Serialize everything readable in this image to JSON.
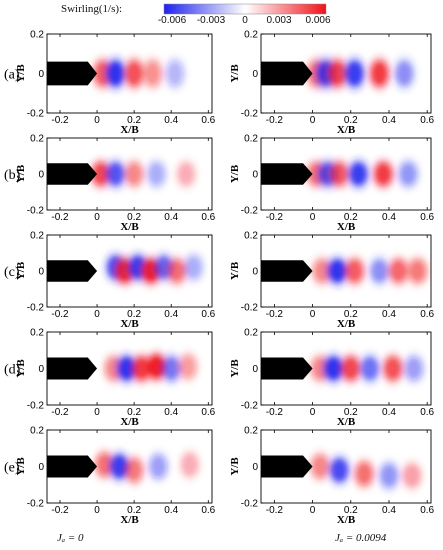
{
  "colorbar": {
    "label": "Swirling(1/s):",
    "ticks": [
      "-0.006",
      "-0.003",
      "0",
      "0.003",
      "0.006"
    ],
    "colors": {
      "negative": "#1e22ee",
      "zero": "#ffffff",
      "positive": "#f0121a"
    }
  },
  "columns": {
    "left_label": "Jₐ = 0",
    "right_label": "Jₐ = 0.0094"
  },
  "chart_data": [
    {
      "type": "heatmap",
      "row": "(a)",
      "column": "J = 0",
      "xlabel": "X/B",
      "ylabel": "Y/B",
      "xlim": [
        -0.27,
        0.62
      ],
      "ylim": [
        -0.2,
        0.2
      ],
      "xticks": [
        "-0.2",
        "0",
        "0.2",
        "0.4",
        "0.6"
      ],
      "yticks": [
        "-0.2",
        "0",
        "0.2"
      ],
      "structures": [
        {
          "x": 0.03,
          "y": 0.0,
          "sign": 1,
          "strength": 0.7
        },
        {
          "x": 0.1,
          "y": 0.0,
          "sign": -1,
          "strength": 1.0
        },
        {
          "x": 0.2,
          "y": 0.0,
          "sign": 1,
          "strength": 0.75
        },
        {
          "x": 0.3,
          "y": 0.0,
          "sign": 1,
          "strength": 0.45
        },
        {
          "x": 0.42,
          "y": 0.0,
          "sign": -1,
          "strength": 0.3
        }
      ]
    },
    {
      "type": "heatmap",
      "row": "(a)",
      "column": "J = 0.0094",
      "xlabel": "X/B",
      "ylabel": "Y/B",
      "xlim": [
        -0.27,
        0.62
      ],
      "ylim": [
        -0.2,
        0.2
      ],
      "xticks": [
        "-0.2",
        "0",
        "0.2",
        "0.4",
        "0.6"
      ],
      "yticks": [
        "-0.2",
        "0",
        "0.2"
      ],
      "structures": [
        {
          "x": 0.02,
          "y": 0.0,
          "sign": 1,
          "strength": 0.6
        },
        {
          "x": 0.07,
          "y": 0.0,
          "sign": -1,
          "strength": 0.9
        },
        {
          "x": 0.13,
          "y": 0.0,
          "sign": 1,
          "strength": 0.8
        },
        {
          "x": 0.22,
          "y": 0.0,
          "sign": -1,
          "strength": 0.95
        },
        {
          "x": 0.35,
          "y": 0.0,
          "sign": 1,
          "strength": 0.85
        },
        {
          "x": 0.48,
          "y": 0.0,
          "sign": -1,
          "strength": 0.5
        }
      ]
    },
    {
      "type": "heatmap",
      "row": "(b)",
      "column": "J = 0",
      "xlabel": "X/B",
      "ylabel": "Y/B",
      "xlim": [
        -0.27,
        0.62
      ],
      "ylim": [
        -0.2,
        0.2
      ],
      "xticks": [
        "-0.2",
        "0",
        "0.2",
        "0.4",
        "0.6"
      ],
      "yticks": [
        "-0.2",
        "0",
        "0.2"
      ],
      "structures": [
        {
          "x": 0.02,
          "y": 0.0,
          "sign": 1,
          "strength": 0.8
        },
        {
          "x": 0.1,
          "y": 0.0,
          "sign": -1,
          "strength": 0.8
        },
        {
          "x": 0.2,
          "y": 0.0,
          "sign": 1,
          "strength": 0.5
        },
        {
          "x": 0.32,
          "y": 0.0,
          "sign": -1,
          "strength": 0.35
        },
        {
          "x": 0.48,
          "y": 0.0,
          "sign": 1,
          "strength": 0.3
        }
      ]
    },
    {
      "type": "heatmap",
      "row": "(b)",
      "column": "J = 0.0094",
      "xlabel": "X/B",
      "ylabel": "Y/B",
      "xlim": [
        -0.27,
        0.62
      ],
      "ylim": [
        -0.2,
        0.2
      ],
      "xticks": [
        "-0.2",
        "0",
        "0.2",
        "0.4",
        "0.6"
      ],
      "yticks": [
        "-0.2",
        "0",
        "0.2"
      ],
      "structures": [
        {
          "x": 0.02,
          "y": 0.0,
          "sign": 1,
          "strength": 0.6
        },
        {
          "x": 0.08,
          "y": 0.0,
          "sign": -1,
          "strength": 0.8
        },
        {
          "x": 0.14,
          "y": 0.0,
          "sign": 1,
          "strength": 0.7
        },
        {
          "x": 0.24,
          "y": 0.0,
          "sign": -1,
          "strength": 0.95
        },
        {
          "x": 0.37,
          "y": 0.0,
          "sign": 1,
          "strength": 0.85
        },
        {
          "x": 0.5,
          "y": 0.0,
          "sign": -1,
          "strength": 0.45
        }
      ]
    },
    {
      "type": "heatmap",
      "row": "(c)",
      "column": "J = 0",
      "xlabel": "X/B",
      "ylabel": "Y/B",
      "xlim": [
        -0.27,
        0.62
      ],
      "ylim": [
        -0.2,
        0.2
      ],
      "xticks": [
        "-0.2",
        "0",
        "0.2",
        "0.4",
        "0.6"
      ],
      "yticks": [
        "-0.2",
        "0",
        "0.2"
      ],
      "structures": [
        {
          "x": 0.1,
          "y": 0.02,
          "sign": -1,
          "strength": 0.85
        },
        {
          "x": 0.15,
          "y": 0.0,
          "sign": 1,
          "strength": 0.95
        },
        {
          "x": 0.22,
          "y": 0.02,
          "sign": -1,
          "strength": 0.95
        },
        {
          "x": 0.29,
          "y": 0.0,
          "sign": 1,
          "strength": 1.0
        },
        {
          "x": 0.36,
          "y": 0.02,
          "sign": -1,
          "strength": 0.7
        },
        {
          "x": 0.43,
          "y": 0.0,
          "sign": 1,
          "strength": 0.6
        },
        {
          "x": 0.52,
          "y": 0.02,
          "sign": -1,
          "strength": 0.35
        }
      ]
    },
    {
      "type": "heatmap",
      "row": "(c)",
      "column": "J = 0.0094",
      "xlabel": "X/B",
      "ylabel": "Y/B",
      "xlim": [
        -0.27,
        0.62
      ],
      "ylim": [
        -0.2,
        0.2
      ],
      "xticks": [
        "-0.2",
        "0",
        "0.2",
        "0.4",
        "0.6"
      ],
      "yticks": [
        "-0.2",
        "0",
        "0.2"
      ],
      "structures": [
        {
          "x": 0.05,
          "y": 0.0,
          "sign": 1,
          "strength": 0.5
        },
        {
          "x": 0.13,
          "y": 0.0,
          "sign": -1,
          "strength": 1.0
        },
        {
          "x": 0.22,
          "y": 0.0,
          "sign": 1,
          "strength": 0.7
        },
        {
          "x": 0.35,
          "y": 0.0,
          "sign": -1,
          "strength": 0.5
        },
        {
          "x": 0.45,
          "y": 0.0,
          "sign": 1,
          "strength": 0.65
        },
        {
          "x": 0.55,
          "y": 0.0,
          "sign": 1,
          "strength": 0.55
        }
      ]
    },
    {
      "type": "heatmap",
      "row": "(d)",
      "column": "J = 0",
      "xlabel": "X/B",
      "ylabel": "Y/B",
      "xlim": [
        -0.27,
        0.62
      ],
      "ylim": [
        -0.2,
        0.2
      ],
      "xticks": [
        "-0.2",
        "0",
        "0.2",
        "0.4",
        "0.6"
      ],
      "yticks": [
        "-0.2",
        "0",
        "0.2"
      ],
      "structures": [
        {
          "x": 0.09,
          "y": 0.0,
          "sign": 1,
          "strength": 0.5
        },
        {
          "x": 0.16,
          "y": 0.0,
          "sign": -1,
          "strength": 1.0
        },
        {
          "x": 0.24,
          "y": 0.0,
          "sign": 1,
          "strength": 0.85
        },
        {
          "x": 0.32,
          "y": 0.01,
          "sign": 1,
          "strength": 1.0
        },
        {
          "x": 0.4,
          "y": 0.0,
          "sign": -1,
          "strength": 0.6
        },
        {
          "x": 0.49,
          "y": 0.01,
          "sign": 1,
          "strength": 0.4
        }
      ]
    },
    {
      "type": "heatmap",
      "row": "(d)",
      "column": "J = 0.0094",
      "xlabel": "X/B",
      "ylabel": "Y/B",
      "xlim": [
        -0.27,
        0.62
      ],
      "ylim": [
        -0.2,
        0.2
      ],
      "xticks": [
        "-0.2",
        "0",
        "0.2",
        "0.4",
        "0.6"
      ],
      "yticks": [
        "-0.2",
        "0",
        "0.2"
      ],
      "structures": [
        {
          "x": 0.04,
          "y": 0.0,
          "sign": 1,
          "strength": 0.5
        },
        {
          "x": 0.11,
          "y": 0.0,
          "sign": -1,
          "strength": 1.0
        },
        {
          "x": 0.2,
          "y": 0.0,
          "sign": 1,
          "strength": 0.8
        },
        {
          "x": 0.3,
          "y": 0.0,
          "sign": -1,
          "strength": 0.65
        },
        {
          "x": 0.42,
          "y": 0.0,
          "sign": 1,
          "strength": 0.75
        },
        {
          "x": 0.53,
          "y": 0.0,
          "sign": -1,
          "strength": 0.4
        }
      ]
    },
    {
      "type": "heatmap",
      "row": "(e)",
      "column": "J = 0",
      "xlabel": "X/B",
      "ylabel": "Y/B",
      "xlim": [
        -0.27,
        0.62
      ],
      "ylim": [
        -0.2,
        0.2
      ],
      "xticks": [
        "-0.2",
        "0",
        "0.2",
        "0.4",
        "0.6"
      ],
      "yticks": [
        "-0.2",
        "0",
        "0.2"
      ],
      "structures": [
        {
          "x": 0.04,
          "y": 0.01,
          "sign": 1,
          "strength": 0.6
        },
        {
          "x": 0.12,
          "y": 0.0,
          "sign": -1,
          "strength": 0.95
        },
        {
          "x": 0.2,
          "y": -0.02,
          "sign": 1,
          "strength": 0.55
        },
        {
          "x": 0.33,
          "y": 0.0,
          "sign": -1,
          "strength": 0.4
        },
        {
          "x": 0.5,
          "y": 0.01,
          "sign": 1,
          "strength": 0.3
        }
      ]
    },
    {
      "type": "heatmap",
      "row": "(e)",
      "column": "J = 0.0094",
      "xlabel": "X/B",
      "ylabel": "Y/B",
      "xlim": [
        -0.27,
        0.62
      ],
      "ylim": [
        -0.2,
        0.2
      ],
      "xticks": [
        "-0.2",
        "0",
        "0.2",
        "0.4",
        "0.6"
      ],
      "yticks": [
        "-0.2",
        "0",
        "0.2"
      ],
      "structures": [
        {
          "x": 0.04,
          "y": 0.0,
          "sign": 1,
          "strength": 0.5
        },
        {
          "x": 0.14,
          "y": -0.02,
          "sign": -1,
          "strength": 0.85
        },
        {
          "x": 0.27,
          "y": -0.04,
          "sign": 1,
          "strength": 0.6
        },
        {
          "x": 0.4,
          "y": -0.05,
          "sign": -1,
          "strength": 0.45
        },
        {
          "x": 0.52,
          "y": -0.05,
          "sign": 1,
          "strength": 0.35
        }
      ]
    }
  ]
}
